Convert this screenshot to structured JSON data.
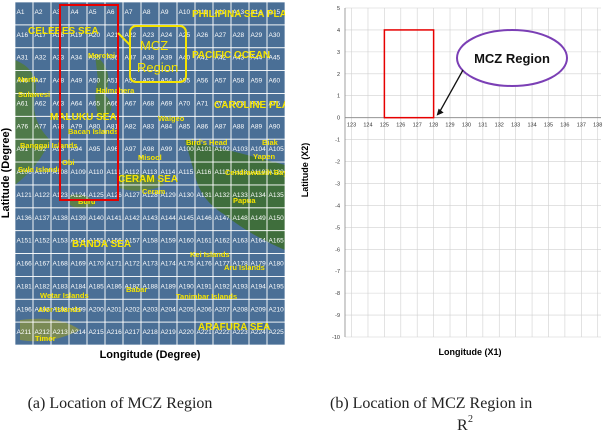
{
  "figure_a": {
    "cells": [
      "A1",
      "A2",
      "A3",
      "A4",
      "A5",
      "A6",
      "A7",
      "A8",
      "A9",
      "A10",
      "A11",
      "A12",
      "A13",
      "A14",
      "A15",
      "A16",
      "A17",
      "A18",
      "A19",
      "A20",
      "A21",
      "A22",
      "A23",
      "A24",
      "A25",
      "A26",
      "A27",
      "A28",
      "A29",
      "A30",
      "A31",
      "A32",
      "A33",
      "A34",
      "A35",
      "A36",
      "A37",
      "A38",
      "A39",
      "A40",
      "A41",
      "A42",
      "A43",
      "A44",
      "A45",
      "A46",
      "A47",
      "A48",
      "A49",
      "A50",
      "A51",
      "A52",
      "A53",
      "A54",
      "A55",
      "A56",
      "A57",
      "A58",
      "A59",
      "A60",
      "A61",
      "A62",
      "A63",
      "A64",
      "A65",
      "A66",
      "A67",
      "A68",
      "A69",
      "A70",
      "A71",
      "A72",
      "A73",
      "A74",
      "A75",
      "A76",
      "A77",
      "A78",
      "A79",
      "A80",
      "A81",
      "A82",
      "A83",
      "A84",
      "A85",
      "A86",
      "A87",
      "A88",
      "A89",
      "A90",
      "A91",
      "A92",
      "A93",
      "A94",
      "A95",
      "A96",
      "A97",
      "A98",
      "A99",
      "A100",
      "A101",
      "A102",
      "A103",
      "A104",
      "A105",
      "A106",
      "A107",
      "A108",
      "A109",
      "A110",
      "A111",
      "A112",
      "A113",
      "A114",
      "A115",
      "A116",
      "A117",
      "A118",
      "A119",
      "A120",
      "A121",
      "A122",
      "A123",
      "A124",
      "A125",
      "A126",
      "A127",
      "A128",
      "A129",
      "A130",
      "A131",
      "A132",
      "A133",
      "A134",
      "A135",
      "A136",
      "A137",
      "A138",
      "A139",
      "A140",
      "A141",
      "A142",
      "A143",
      "A144",
      "A145",
      "A146",
      "A147",
      "A148",
      "A149",
      "A150",
      "A151",
      "A152",
      "A153",
      "A154",
      "A155",
      "A156",
      "A157",
      "A158",
      "A159",
      "A160",
      "A161",
      "A162",
      "A163",
      "A164",
      "A165",
      "A166",
      "A167",
      "A168",
      "A169",
      "A170",
      "A171",
      "A172",
      "A173",
      "A174",
      "A175",
      "A176",
      "A177",
      "A178",
      "A179",
      "A180",
      "A181",
      "A182",
      "A183",
      "A184",
      "A185",
      "A186",
      "A187",
      "A188",
      "A189",
      "A190",
      "A191",
      "A192",
      "A193",
      "A194",
      "A195",
      "A196",
      "A197",
      "A198",
      "A199",
      "A200",
      "A201",
      "A202",
      "A203",
      "A204",
      "A205",
      "A206",
      "A207",
      "A208",
      "A209",
      "A210",
      "A211",
      "A212",
      "A213",
      "A214",
      "A215",
      "A216",
      "A217",
      "A218",
      "A219",
      "A220",
      "A221",
      "A222",
      "A223",
      "A224",
      "A225"
    ],
    "places": [
      "CELEBES SEA",
      "PHILIPINA SEA PLATE",
      "PACIFIC OCEAN",
      "Morotai",
      "Halmahera",
      "North",
      "Sulawesi",
      "MALUKU SEA",
      "CAROLINE PLATE",
      "Waigeo",
      "Bacan Islands",
      "Banggai Islands",
      "Bird's Head",
      "Biak",
      "Yapen",
      "Obi",
      "Sula Islands",
      "Misool",
      "Cendrawasih Bay",
      "CERAM SEA",
      "Ceram",
      "Buru",
      "Papua",
      "BANDA SEA",
      "Kei Islands",
      "Aru Islands",
      "Babar",
      "Wetar Islands",
      "Tanimbar Islands",
      "Alor Islands",
      "ARAFURA SEA",
      "Timor"
    ],
    "callout": [
      "MCZ",
      "Region"
    ],
    "y_label": "Latitude (Degree)",
    "x_label": "Longitude (Degree)",
    "caption": "(a) Location of MCZ Region"
  },
  "chart_data": {
    "type": "region",
    "xlim": [
      122.6,
      138.2
    ],
    "ylim": [
      -10,
      5
    ],
    "xticks": [
      123,
      124,
      125,
      126,
      127,
      128,
      129,
      130,
      131,
      132,
      133,
      134,
      135,
      136,
      137,
      138
    ],
    "yticks": [
      -10,
      -9,
      -8,
      -7,
      -6,
      -5,
      -4,
      -3,
      -2,
      -1,
      0,
      1,
      2,
      3,
      4,
      5
    ],
    "grid": true,
    "region": {
      "x": [
        125,
        128
      ],
      "y": [
        0,
        4
      ],
      "color": "#e60000"
    },
    "annotation": "MCZ Region",
    "x_label": "Longitude (X1)",
    "y_label": "Latitude (X2)",
    "caption": "(b) Location of MCZ Region in",
    "caption_cont": "R",
    "caption_sup": "2"
  }
}
